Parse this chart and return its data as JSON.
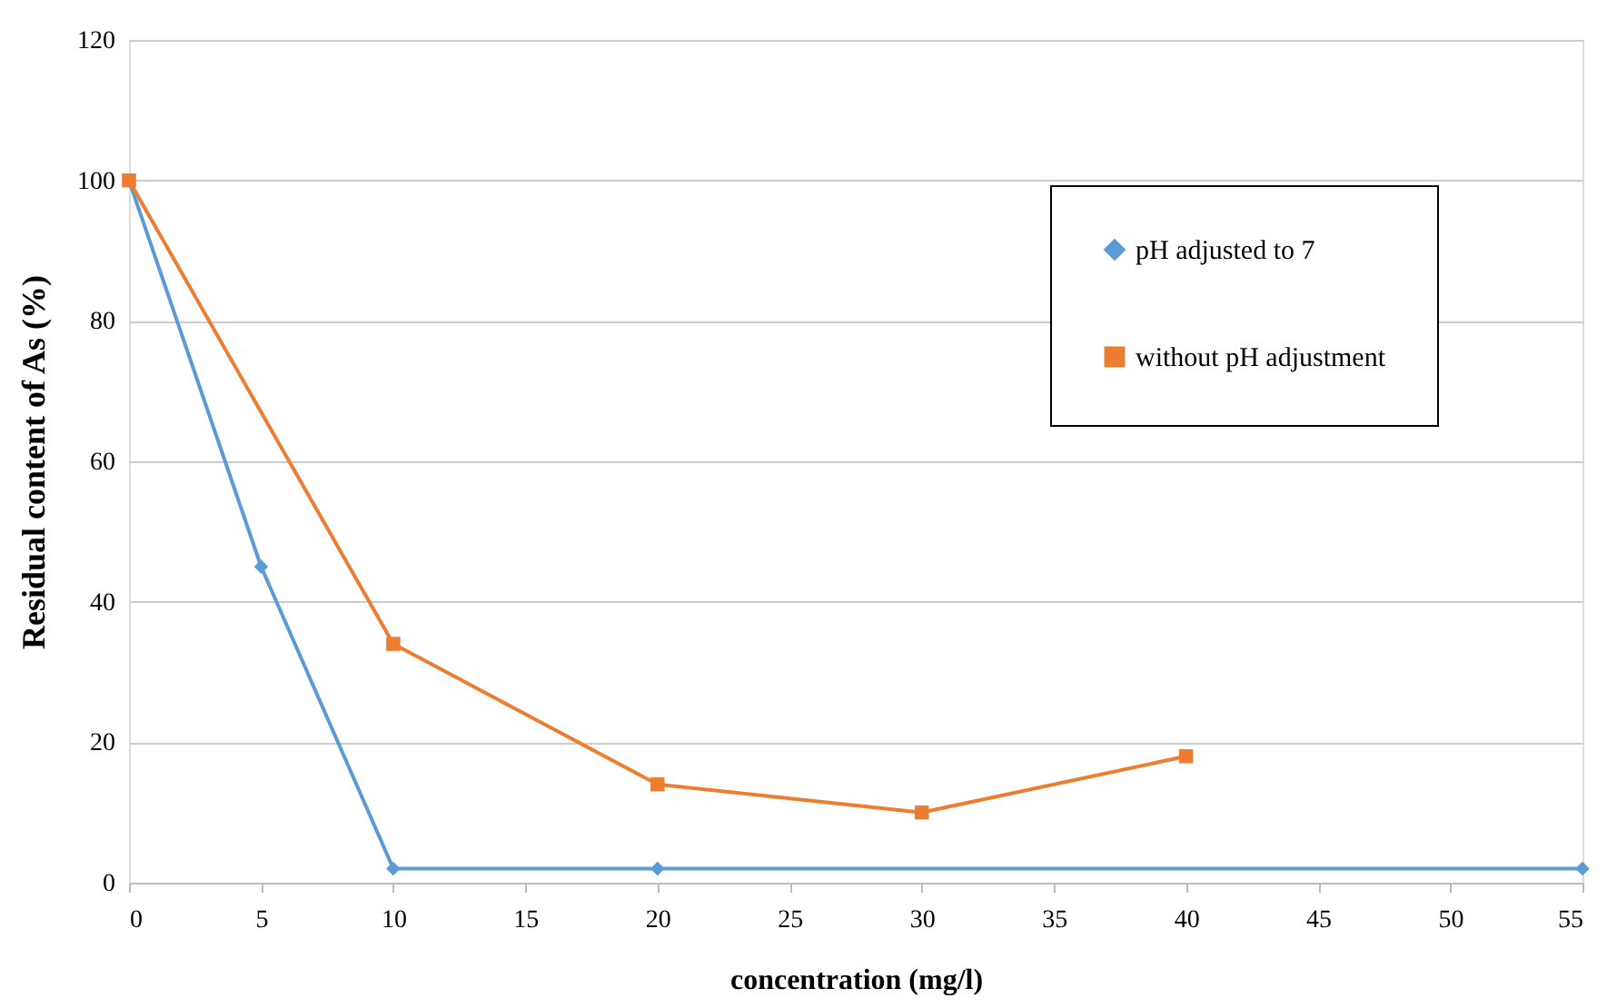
{
  "chart_data": {
    "type": "line",
    "xlabel": "concentration (mg/l)",
    "ylabel": "Residual content of As (%)",
    "xlim": [
      0,
      55
    ],
    "xticks": [
      0,
      5,
      10,
      15,
      20,
      25,
      30,
      35,
      40,
      45,
      50,
      55
    ],
    "ylim": [
      0,
      120
    ],
    "yticks": [
      0,
      20,
      40,
      60,
      80,
      100,
      120
    ],
    "grid": "y",
    "legend": "top right",
    "series": [
      {
        "name": "pH adjusted to 7",
        "color": "#5b9bd5",
        "marker": "diamond",
        "x": [
          0,
          5,
          10,
          20,
          55
        ],
        "values": [
          100,
          45,
          2,
          2,
          2
        ]
      },
      {
        "name": "without pH adjustment",
        "color": "#ed7d31",
        "marker": "square",
        "x": [
          0,
          10,
          20,
          30,
          40
        ],
        "values": [
          100,
          34,
          14,
          10,
          18
        ]
      }
    ]
  }
}
